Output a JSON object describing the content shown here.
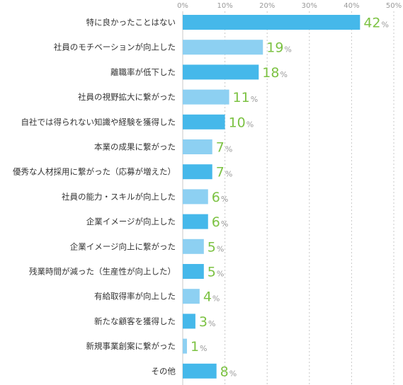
{
  "chart_data": {
    "type": "bar",
    "orientation": "horizontal",
    "categories": [
      "特に良かったことはない",
      "社員のモチベーションが向上した",
      "離職率が低下した",
      "社員の視野拡大に繋がった",
      "自社では得られない知識や経験を獲得した",
      "本業の成果に繋がった",
      "優秀な人材採用に繋がった（応募が増えた）",
      "社員の能力・スキルが向上した",
      "企業イメージが向上した",
      "企業イメージ向上に繋がった",
      "残業時間が減った（生産性が向上した）",
      "有給取得率が向上した",
      "新たな顧客を獲得した",
      "新規事業創案に繋がった",
      "その他"
    ],
    "values": [
      42,
      19,
      18,
      11,
      10,
      7,
      7,
      6,
      6,
      5,
      5,
      4,
      3,
      1,
      8
    ],
    "value_suffix": "%",
    "xlim": [
      0,
      50
    ],
    "x_ticks": [
      "0%",
      "10%",
      "20%",
      "30%",
      "40%",
      "50%"
    ],
    "grid": true,
    "colors": {
      "bar_dark": "#45b8ea",
      "bar_light": "#8dd0f2",
      "value_text": "#7cc243",
      "grid": "#c8c8c8"
    }
  }
}
